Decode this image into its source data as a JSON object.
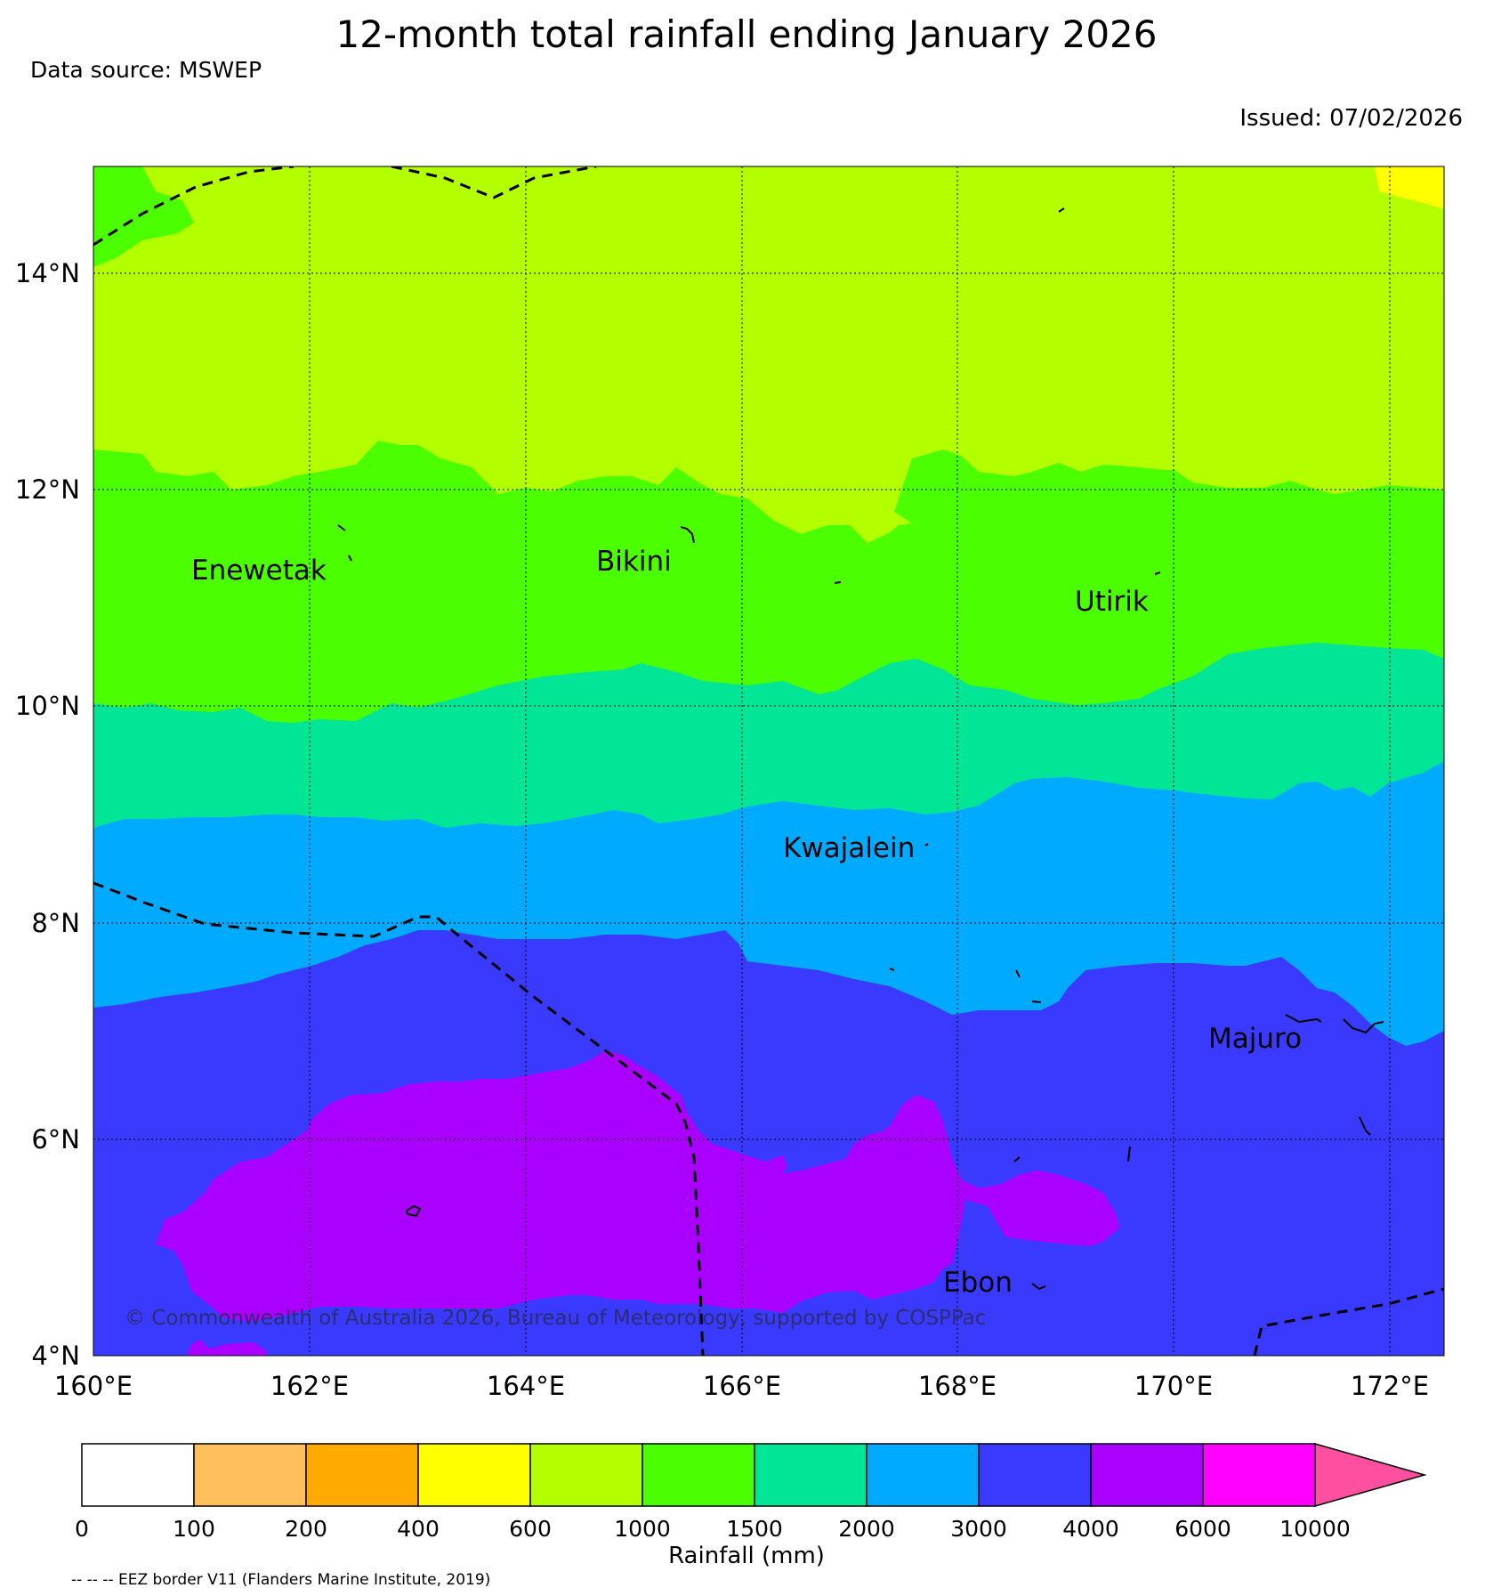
{
  "header": {
    "title": "12-month total rainfall ending January 2026",
    "data_source": "Data source: MSWEP",
    "issued": "Issued: 07/02/2026"
  },
  "map": {
    "extent": {
      "lon": [
        160,
        172.5
      ],
      "lat": [
        4,
        15
      ]
    },
    "x_ticks": [
      "160°E",
      "162°E",
      "164°E",
      "166°E",
      "168°E",
      "170°E",
      "172°E"
    ],
    "y_ticks": [
      "4°N",
      "6°N",
      "8°N",
      "10°N",
      "12°N",
      "14°N"
    ],
    "grid": "dotted",
    "places": [
      {
        "name": "Enewetak"
      },
      {
        "name": "Bikini"
      },
      {
        "name": "Utirik"
      },
      {
        "name": "Kwajalein"
      },
      {
        "name": "Majuro"
      },
      {
        "name": "Ebon"
      }
    ],
    "copyright": "© Commonwealth of Australia 2026, Bureau of Meteorology, supported by COSPPac",
    "rainfall_bands_mm": [
      {
        "range": "600-1000",
        "color": "#b3ff00"
      },
      {
        "range": "1000-1500",
        "color": "#4cff00"
      },
      {
        "range": "1500-2000",
        "color": "#00e696"
      },
      {
        "range": "2000-3000",
        "color": "#00aaff"
      },
      {
        "range": "3000-4000",
        "color": "#3a3aff"
      },
      {
        "range": "4000-6000",
        "color": "#aa00ff"
      },
      {
        "range": "400-600",
        "color": "#ffff00"
      }
    ]
  },
  "colorbar": {
    "title": "Rainfall (mm)",
    "boundaries": [
      "0",
      "100",
      "200",
      "400",
      "600",
      "1000",
      "1500",
      "2000",
      "3000",
      "4000",
      "6000",
      "10000"
    ],
    "colors": [
      "#ffffff",
      "#ffbf5a",
      "#ffaa00",
      "#ffff00",
      "#b3ff00",
      "#4cff00",
      "#00e696",
      "#00aaff",
      "#3a3aff",
      "#aa00ff",
      "#ff00ff"
    ],
    "extend_color": "#ff4fa0"
  },
  "legend_note": "-- -- -- EEZ border V11 (Flanders Marine Institute, 2019)"
}
